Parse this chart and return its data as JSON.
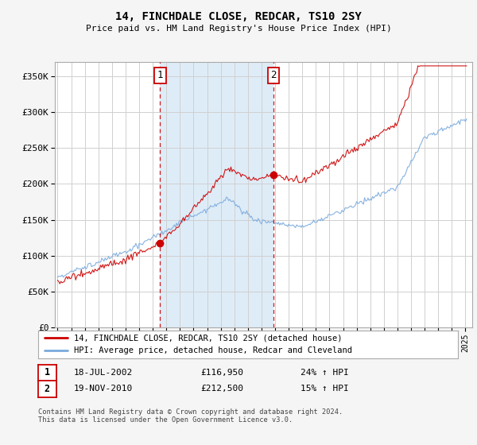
{
  "title": "14, FINCHDALE CLOSE, REDCAR, TS10 2SY",
  "subtitle": "Price paid vs. HM Land Registry's House Price Index (HPI)",
  "legend_line1": "14, FINCHDALE CLOSE, REDCAR, TS10 2SY (detached house)",
  "legend_line2": "HPI: Average price, detached house, Redcar and Cleveland",
  "transaction1_date": "18-JUL-2002",
  "transaction1_price": "£116,950",
  "transaction1_hpi": "24% ↑ HPI",
  "transaction2_date": "19-NOV-2010",
  "transaction2_price": "£212,500",
  "transaction2_hpi": "15% ↑ HPI",
  "footnote": "Contains HM Land Registry data © Crown copyright and database right 2024.\nThis data is licensed under the Open Government Licence v3.0.",
  "property_color": "#cc0000",
  "hpi_color": "#7aaadd",
  "vline_color": "#cc0000",
  "shade_color": "#d6e8f5",
  "marker1_x": 2002.54,
  "marker1_y": 116950,
  "marker2_x": 2010.88,
  "marker2_y": 212500,
  "ylim": [
    0,
    370000
  ],
  "xlim_left": 1994.8,
  "xlim_right": 2025.5,
  "yticks": [
    0,
    50000,
    100000,
    150000,
    200000,
    250000,
    300000,
    350000
  ],
  "ytick_labels": [
    "£0",
    "£50K",
    "£100K",
    "£150K",
    "£200K",
    "£250K",
    "£300K",
    "£350K"
  ],
  "xtick_years": [
    1995,
    1996,
    1997,
    1998,
    1999,
    2000,
    2001,
    2002,
    2003,
    2004,
    2005,
    2006,
    2007,
    2008,
    2009,
    2010,
    2011,
    2012,
    2013,
    2014,
    2015,
    2016,
    2017,
    2018,
    2019,
    2020,
    2021,
    2022,
    2023,
    2024,
    2025
  ],
  "plot_bg_color": "#ffffff",
  "fig_bg_color": "#f5f5f5",
  "grid_color": "#d0d0d0"
}
